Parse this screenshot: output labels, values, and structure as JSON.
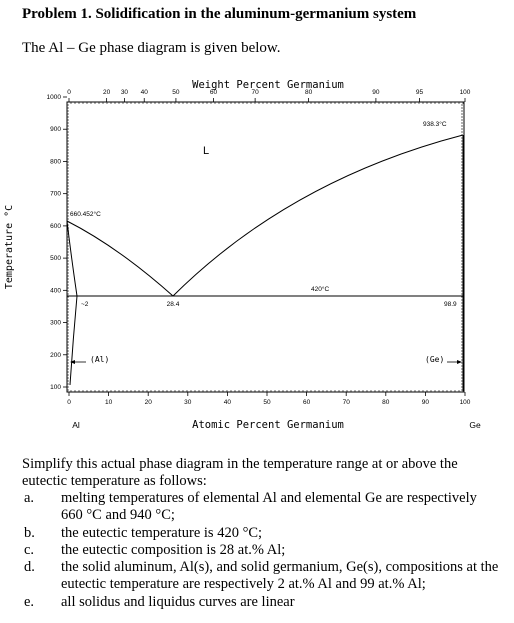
{
  "title": "Problem 1. Solidification in the aluminum-germanium system",
  "intro": "The Al – Ge phase diagram is given below.",
  "figure": {
    "top_axis_label": "Weight Percent Germanium",
    "bottom_axis_label": "Atomic Percent Germanium",
    "y_axis_label": "Temperature °C",
    "top_ticks": [
      "0",
      "20",
      "30",
      "40",
      "50",
      "60",
      "70",
      "80",
      "90",
      "95",
      "100"
    ],
    "bottom_ticks": [
      "0",
      "10",
      "20",
      "30",
      "40",
      "50",
      "60",
      "70",
      "80",
      "90",
      "100"
    ],
    "y_ticks": [
      "1000",
      "900",
      "800",
      "700",
      "600",
      "500",
      "400",
      "300",
      "200",
      "100"
    ],
    "left_element": "Al",
    "right_element": "Ge",
    "annotations": {
      "liquid": "L",
      "al_melt": "660.452°C",
      "ge_melt": "938.3°C",
      "eutectic_temp": "420°C",
      "eutectic_comp": "28.4",
      "al_solubility": "~2",
      "ge_solubility": "98.9",
      "al_phase": "(Al)",
      "ge_phase": "(Ge)"
    },
    "colors": {
      "lines": "#000000"
    }
  },
  "paragraph": "Simplify this actual phase diagram in the temperature range at or above the eutectic temperature as follows:",
  "items": [
    {
      "marker": "a.",
      "text": "melting temperatures of elemental Al and elemental Ge are respectively 660 °C and 940 °C;"
    },
    {
      "marker": "b.",
      "text": "the eutectic temperature is 420 °C;"
    },
    {
      "marker": "c.",
      "text": "the eutectic composition is 28 at.% Al;"
    },
    {
      "marker": "d.",
      "text": "the solid aluminum, Al(s), and solid germanium, Ge(s), compositions at the eutectic temperature are respectively 2 at.% Al and 99 at.% Al;"
    },
    {
      "marker": "e.",
      "text": "all solidus and liquidus curves are linear"
    }
  ]
}
